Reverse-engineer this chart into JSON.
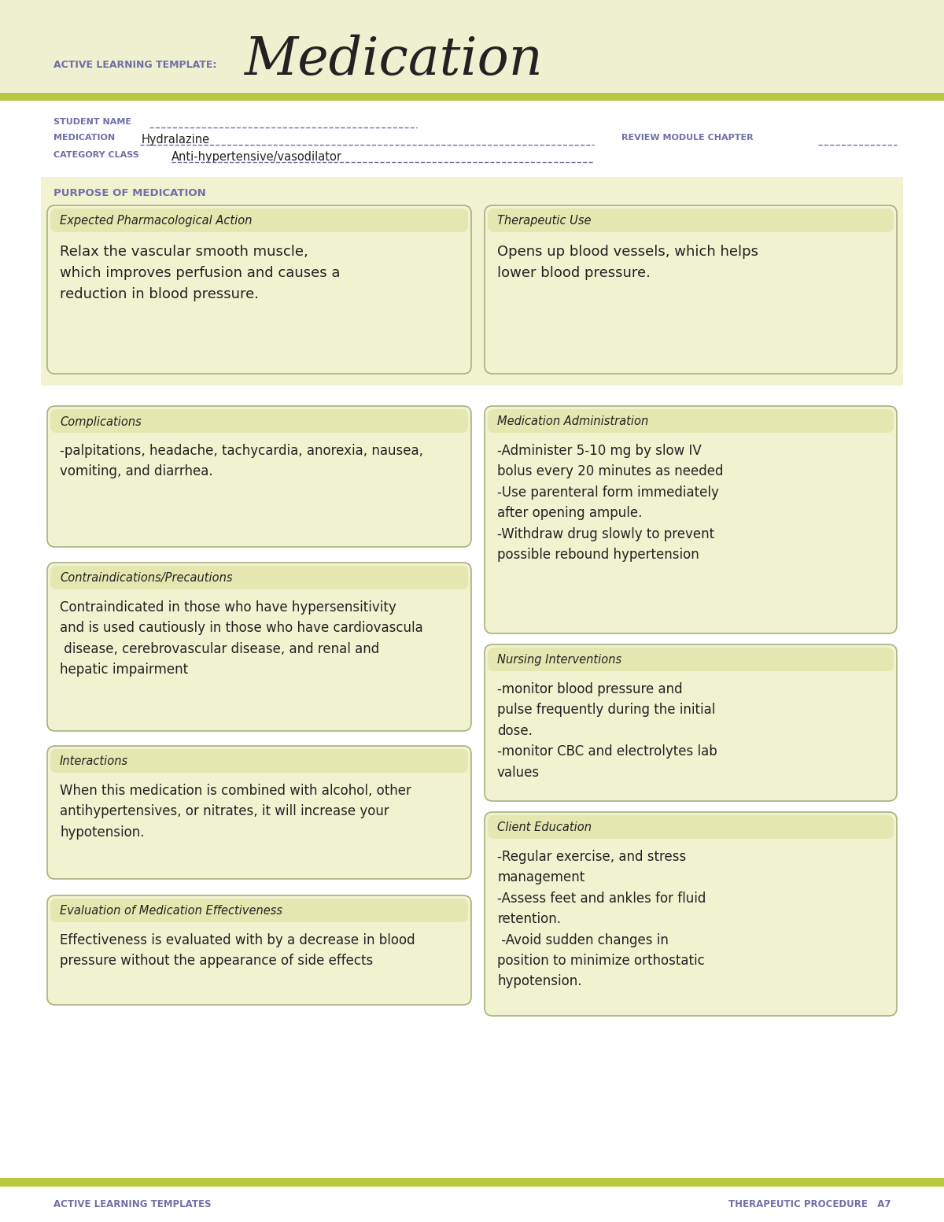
{
  "page_bg": "#ffffff",
  "header_bg": "#eef0d0",
  "box_bg": "#f0f2d0",
  "box_header_bg": "#e4e8b0",
  "box_border": "#aab080",
  "green_stripe": "#b8c840",
  "title_small": "ACTIVE LEARNING TEMPLATE:",
  "title_large": "Medication",
  "purple": "#7070a8",
  "dark": "#222222",
  "student_name_label": "STUDENT NAME",
  "medication_label": "MEDICATION",
  "medication_value": "Hydralazine",
  "review_label": "REVIEW MODULE CHAPTER",
  "category_label": "CATEGORY CLASS",
  "category_value": "Anti-hypertensive/vasodilator",
  "purpose_header": "PURPOSE OF MEDICATION",
  "box1_title": "Expected Pharmacological Action",
  "box1_content": "Relax the vascular smooth muscle,\nwhich improves perfusion and causes a\nreduction in blood pressure.",
  "box2_title": "Therapeutic Use",
  "box2_content": "Opens up blood vessels, which helps\nlower blood pressure.",
  "box3_title": "Complications",
  "box3_content": "-palpitations, headache, tachycardia, anorexia, nausea,\nvomiting, and diarrhea.",
  "box4_title": "Medication Administration",
  "box4_content": "-Administer 5-10 mg by slow IV\nbolus every 20 minutes as needed\n-Use parenteral form immediately\nafter opening ampule.\n-Withdraw drug slowly to prevent\npossible rebound hypertension",
  "box5_title": "Contraindications/Precautions",
  "box5_content": "Contraindicated in those who have hypersensitivity\nand is used cautiously in those who have cardiovascula\n disease, cerebrovascular disease, and renal and\nhepatic impairment",
  "box6_title": "Nursing Interventions",
  "box6_content": "-monitor blood pressure and\npulse frequently during the initial\ndose.\n-monitor CBC and electrolytes lab\nvalues",
  "box7_title": "Interactions",
  "box7_content": "When this medication is combined with alcohol, other\nantihypertensives, or nitrates, it will increase your\nhypotension.",
  "box8_title": "Client Education",
  "box8_content": "-Regular exercise, and stress\nmanagement\n-Assess feet and ankles for fluid\nretention.\n -Avoid sudden changes in\nposition to minimize orthostatic\nhypotension.",
  "box9_title": "Evaluation of Medication Effectiveness",
  "box9_content": "Effectiveness is evaluated with by a decrease in blood\npressure without the appearance of side effects",
  "footer_left": "ACTIVE LEARNING TEMPLATES",
  "footer_right": "THERAPEUTIC PROCEDURE   A7"
}
